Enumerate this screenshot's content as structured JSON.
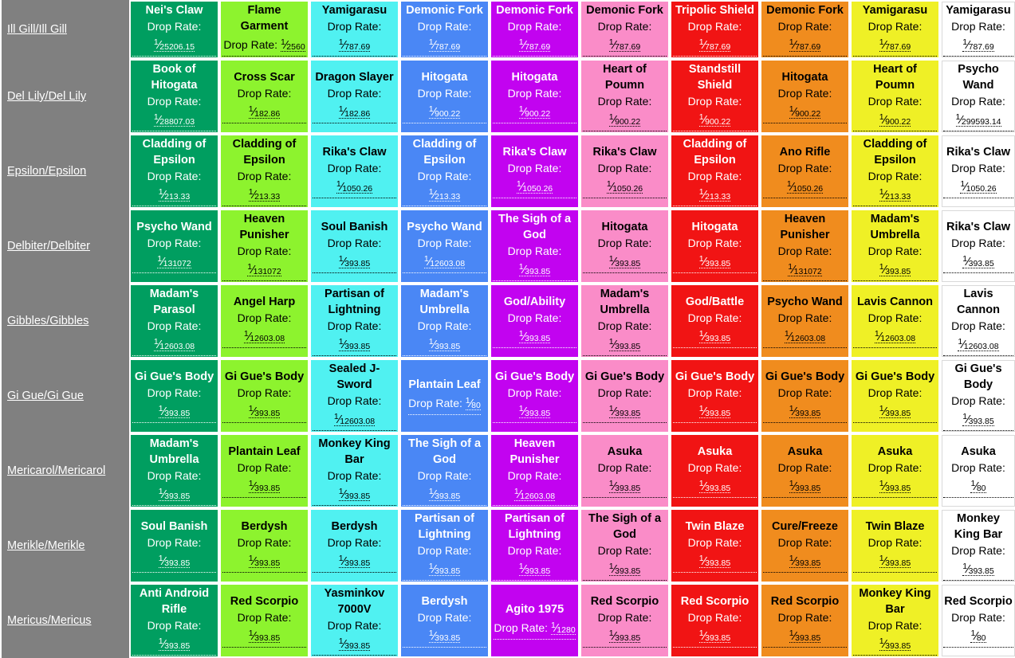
{
  "ui": {
    "drop_rate_label": "Drop Rate:",
    "fraction_numerator": "1"
  },
  "label_column": {
    "bg": "#808080",
    "link_color": "#FFFFFF"
  },
  "columns": [
    {
      "name": "dark-green",
      "bg": "#009E60",
      "fg": "#FFFFFF"
    },
    {
      "name": "light-green",
      "bg": "#8DF32E",
      "fg": "#000000"
    },
    {
      "name": "cyan",
      "bg": "#50F1F1",
      "fg": "#000000"
    },
    {
      "name": "blue",
      "bg": "#4A87F5",
      "fg": "#FFFFFF"
    },
    {
      "name": "magenta",
      "bg": "#C203F0",
      "fg": "#FFFFFF"
    },
    {
      "name": "pink",
      "bg": "#FA8CC8",
      "fg": "#000000"
    },
    {
      "name": "red",
      "bg": "#F11414",
      "fg": "#FFFFFF"
    },
    {
      "name": "orange",
      "bg": "#F08C1E",
      "fg": "#000000"
    },
    {
      "name": "yellow",
      "bg": "#EFF026",
      "fg": "#000000"
    },
    {
      "name": "white",
      "bg": "#FFFFFF",
      "fg": "#000000"
    }
  ],
  "rows": [
    {
      "monster": "Ill Gill/Ill Gill",
      "drops": [
        {
          "item": "Nei's Claw",
          "denominator": "25206.15"
        },
        {
          "item": "Flame Garment",
          "denominator": "2560"
        },
        {
          "item": "Yamigarasu",
          "denominator": "787.69"
        },
        {
          "item": "Demonic Fork",
          "denominator": "787.69"
        },
        {
          "item": "Demonic Fork",
          "denominator": "787.69"
        },
        {
          "item": "Demonic Fork",
          "denominator": "787.69"
        },
        {
          "item": "Tripolic Shield",
          "denominator": "787.69"
        },
        {
          "item": "Demonic Fork",
          "denominator": "787.69"
        },
        {
          "item": "Yamigarasu",
          "denominator": "787.69"
        },
        {
          "item": "Yamigarasu",
          "denominator": "787.69"
        }
      ]
    },
    {
      "monster": "Del Lily/Del Lily",
      "drops": [
        {
          "item": "Book of Hitogata",
          "denominator": "28807.03"
        },
        {
          "item": "Cross Scar",
          "denominator": "182.86"
        },
        {
          "item": "Dragon Slayer",
          "denominator": "182.86"
        },
        {
          "item": "Hitogata",
          "denominator": "900.22"
        },
        {
          "item": "Hitogata",
          "denominator": "900.22"
        },
        {
          "item": "Heart of Poumn",
          "denominator": "900.22"
        },
        {
          "item": "Standstill Shield",
          "denominator": "900.22"
        },
        {
          "item": "Hitogata",
          "denominator": "900.22"
        },
        {
          "item": "Heart of Poumn",
          "denominator": "900.22"
        },
        {
          "item": "Psycho Wand",
          "denominator": "299593.14"
        }
      ]
    },
    {
      "monster": "Epsilon/Epsilon",
      "drops": [
        {
          "item": "Cladding of Epsilon",
          "denominator": "213.33"
        },
        {
          "item": "Cladding of Epsilon",
          "denominator": "213.33"
        },
        {
          "item": "Rika's Claw",
          "denominator": "1050.26"
        },
        {
          "item": "Cladding of Epsilon",
          "denominator": "213.33"
        },
        {
          "item": "Rika's Claw",
          "denominator": "1050.26"
        },
        {
          "item": "Rika's Claw",
          "denominator": "1050.26"
        },
        {
          "item": "Cladding of Epsilon",
          "denominator": "213.33"
        },
        {
          "item": "Ano Rifle",
          "denominator": "1050.26"
        },
        {
          "item": "Cladding of Epsilon",
          "denominator": "213.33"
        },
        {
          "item": "Rika's Claw",
          "denominator": "1050.26"
        }
      ]
    },
    {
      "monster": "Delbiter/Delbiter",
      "drops": [
        {
          "item": "Psycho Wand",
          "denominator": "131072"
        },
        {
          "item": "Heaven Punisher",
          "denominator": "131072"
        },
        {
          "item": "Soul Banish",
          "denominator": "393.85"
        },
        {
          "item": "Psycho Wand",
          "denominator": "12603.08"
        },
        {
          "item": "The Sigh of a God",
          "denominator": "393.85"
        },
        {
          "item": "Hitogata",
          "denominator": "393.85"
        },
        {
          "item": "Hitogata",
          "denominator": "393.85"
        },
        {
          "item": "Heaven Punisher",
          "denominator": "131072"
        },
        {
          "item": "Madam's Umbrella",
          "denominator": "393.85"
        },
        {
          "item": "Rika's Claw",
          "denominator": "393.85"
        }
      ]
    },
    {
      "monster": "Gibbles/Gibbles",
      "drops": [
        {
          "item": "Madam's Parasol",
          "denominator": "12603.08"
        },
        {
          "item": "Angel Harp",
          "denominator": "12603.08"
        },
        {
          "item": "Partisan of Lightning",
          "denominator": "393.85"
        },
        {
          "item": "Madam's Umbrella",
          "denominator": "393.85"
        },
        {
          "item": "God/Ability",
          "denominator": "393.85"
        },
        {
          "item": "Madam's Umbrella",
          "denominator": "393.85"
        },
        {
          "item": "God/Battle",
          "denominator": "393.85"
        },
        {
          "item": "Psycho Wand",
          "denominator": "12603.08"
        },
        {
          "item": "Lavis Cannon",
          "denominator": "12603.08"
        },
        {
          "item": "Lavis Cannon",
          "denominator": "12603.08"
        }
      ]
    },
    {
      "monster": "Gi Gue/Gi Gue",
      "drops": [
        {
          "item": "Gi Gue's Body",
          "denominator": "393.85"
        },
        {
          "item": "Gi Gue's Body",
          "denominator": "393.85"
        },
        {
          "item": "Sealed J-Sword",
          "denominator": "12603.08"
        },
        {
          "item": "Plantain Leaf",
          "denominator": "80"
        },
        {
          "item": "Gi Gue's Body",
          "denominator": "393.85"
        },
        {
          "item": "Gi Gue's Body",
          "denominator": "393.85"
        },
        {
          "item": "Gi Gue's Body",
          "denominator": "393.85"
        },
        {
          "item": "Gi Gue's Body",
          "denominator": "393.85"
        },
        {
          "item": "Gi Gue's Body",
          "denominator": "393.85"
        },
        {
          "item": "Gi Gue's Body",
          "denominator": "393.85"
        }
      ]
    },
    {
      "monster": "Mericarol/Mericarol",
      "drops": [
        {
          "item": "Madam's Umbrella",
          "denominator": "393.85"
        },
        {
          "item": "Plantain Leaf",
          "denominator": "393.85"
        },
        {
          "item": "Monkey King Bar",
          "denominator": "393.85"
        },
        {
          "item": "The Sigh of a God",
          "denominator": "393.85"
        },
        {
          "item": "Heaven Punisher",
          "denominator": "12603.08"
        },
        {
          "item": "Asuka",
          "denominator": "393.85"
        },
        {
          "item": "Asuka",
          "denominator": "393.85"
        },
        {
          "item": "Asuka",
          "denominator": "393.85"
        },
        {
          "item": "Asuka",
          "denominator": "393.85"
        },
        {
          "item": "Asuka",
          "denominator": "80"
        }
      ]
    },
    {
      "monster": "Merikle/Merikle",
      "drops": [
        {
          "item": "Soul Banish",
          "denominator": "393.85"
        },
        {
          "item": "Berdysh",
          "denominator": "393.85"
        },
        {
          "item": "Berdysh",
          "denominator": "393.85"
        },
        {
          "item": "Partisan of Lightning",
          "denominator": "393.85"
        },
        {
          "item": "Partisan of Lightning",
          "denominator": "393.85"
        },
        {
          "item": "The Sigh of a God",
          "denominator": "393.85"
        },
        {
          "item": "Twin Blaze",
          "denominator": "393.85"
        },
        {
          "item": "Cure/Freeze",
          "denominator": "393.85"
        },
        {
          "item": "Twin Blaze",
          "denominator": "393.85"
        },
        {
          "item": "Monkey King Bar",
          "denominator": "393.85"
        }
      ]
    },
    {
      "monster": "Mericus/Mericus",
      "drops": [
        {
          "item": "Anti Android Rifle",
          "denominator": "393.85"
        },
        {
          "item": "Red Scorpio",
          "denominator": "393.85"
        },
        {
          "item": "Yasminkov 7000V",
          "denominator": "393.85"
        },
        {
          "item": "Berdysh",
          "denominator": "393.85"
        },
        {
          "item": "Agito 1975",
          "denominator": "1280"
        },
        {
          "item": "Red Scorpio",
          "denominator": "393.85"
        },
        {
          "item": "Red Scorpio",
          "denominator": "393.85"
        },
        {
          "item": "Red Scorpio",
          "denominator": "393.85"
        },
        {
          "item": "Monkey King Bar",
          "denominator": "393.85"
        },
        {
          "item": "Red Scorpio",
          "denominator": "80"
        }
      ]
    }
  ]
}
